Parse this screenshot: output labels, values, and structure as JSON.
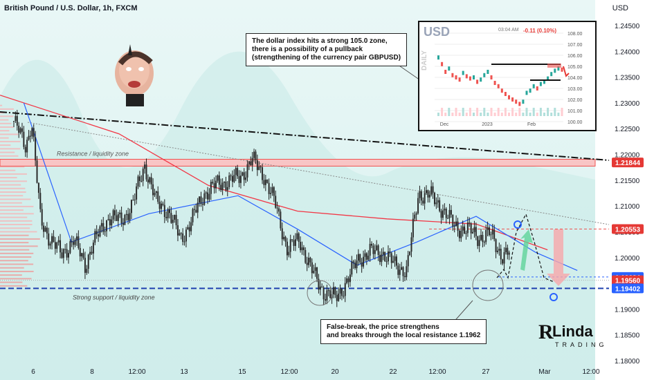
{
  "header": {
    "title": "British Pound / U.S. Dollar, 1h, FXCM",
    "currency": "USD"
  },
  "annotations": {
    "resistance_zone": "Resistance / liquidity zone",
    "support_zone": "Strong support / liquidity zone",
    "dollar_note": [
      "The dollar index hits a strong 105.0 zone,",
      "there is a possibility of a pullback",
      "(strengthening of the currency pair GBPUSD)"
    ],
    "breakout_note": [
      "False-break, the price strengthens",
      "and breaks through the local resistance 1.1962"
    ]
  },
  "price_tags": [
    {
      "value": "1.21844",
      "color": "#e53935"
    },
    {
      "value": "1.20553",
      "color": "#e53935"
    },
    {
      "value": "1.19624",
      "color": "#2962ff"
    },
    {
      "value": "1.19560",
      "color": "#e53935"
    },
    {
      "value": "1.19402",
      "color": "#2962ff"
    }
  ],
  "inset": {
    "symbol": "USD",
    "time": "03:04 AM",
    "change": "-0.11 (0.10%)",
    "period": "DAILY",
    "y_ticks": [
      "108.00",
      "107.00",
      "106.00",
      "105.00",
      "104.00",
      "103.00",
      "102.00",
      "101.00",
      "100.00"
    ],
    "x_ticks": [
      "Dec",
      "2023",
      "Feb"
    ]
  },
  "logo": {
    "main": "Linda",
    "sub": "TRADING"
  },
  "colors": {
    "bull": "#089981",
    "bear": "#f23645",
    "support": "#1e40af",
    "resistance": "#ef5350",
    "ma_red": "#f23645",
    "ma_blue": "#2962ff"
  },
  "chart_data": {
    "type": "candlestick",
    "title": "British Pound / U.S. Dollar, 1h, FXCM",
    "ylim": [
      1.18,
      1.245
    ],
    "y_ticks": [
      1.245,
      1.24,
      1.235,
      1.23,
      1.225,
      1.22,
      1.215,
      1.21,
      1.205,
      1.2,
      1.195,
      1.19,
      1.185,
      1.18
    ],
    "y_tick_labels": [
      "1.24500",
      "1.24000",
      "1.23500",
      "1.23000",
      "1.22500",
      "1.22000",
      "1.21500",
      "1.21000",
      "1.20500",
      "1.20000",
      "1.19500",
      "1.19000",
      "1.18500",
      "1.18000"
    ],
    "x_tick_labels": [
      "6",
      "8",
      "12:00",
      "13",
      "15",
      "12:00",
      "20",
      "22",
      "12:00",
      "27",
      "Mar",
      "12:00"
    ],
    "close_path": [
      [
        0,
        1.2265
      ],
      [
        0.02,
        1.2215
      ],
      [
        0.03,
        1.2265
      ],
      [
        0.045,
        1.207
      ],
      [
        0.06,
        1.204
      ],
      [
        0.08,
        1.2005
      ],
      [
        0.1,
        1.2035
      ],
      [
        0.12,
        1.1985
      ],
      [
        0.13,
        1.202
      ],
      [
        0.16,
        1.208
      ],
      [
        0.18,
        1.207
      ],
      [
        0.2,
        1.2105
      ],
      [
        0.22,
        1.218
      ],
      [
        0.24,
        1.2105
      ],
      [
        0.26,
        1.209
      ],
      [
        0.28,
        1.2035
      ],
      [
        0.3,
        1.2075
      ],
      [
        0.32,
        1.2125
      ],
      [
        0.34,
        1.214
      ],
      [
        0.36,
        1.215
      ],
      [
        0.38,
        1.2155
      ],
      [
        0.4,
        1.219
      ],
      [
        0.42,
        1.216
      ],
      [
        0.44,
        1.21
      ],
      [
        0.46,
        1.2015
      ],
      [
        0.48,
        1.2035
      ],
      [
        0.5,
        1.1975
      ],
      [
        0.52,
        1.1935
      ],
      [
        0.54,
        1.192
      ],
      [
        0.56,
        1.1955
      ],
      [
        0.58,
        1.2
      ],
      [
        0.6,
        1.201
      ],
      [
        0.62,
        1.201
      ],
      [
        0.64,
        1.1985
      ],
      [
        0.66,
        1.1975
      ],
      [
        0.68,
        1.2125
      ],
      [
        0.7,
        1.212
      ],
      [
        0.72,
        1.2095
      ],
      [
        0.74,
        1.206
      ],
      [
        0.76,
        1.2055
      ],
      [
        0.78,
        1.204
      ],
      [
        0.8,
        1.2045
      ],
      [
        0.82,
        1.2005
      ],
      [
        0.84,
        1.201
      ],
      [
        0.86,
        1.196
      ],
      [
        0.88,
        1.1955
      ],
      [
        0.9,
        1.1945
      ],
      [
        0.92,
        1.1935
      ]
    ],
    "ma_red": [
      [
        0,
        1.2315
      ],
      [
        0.2,
        1.224
      ],
      [
        0.35,
        1.214
      ],
      [
        0.5,
        1.209
      ],
      [
        0.65,
        1.2075
      ],
      [
        0.8,
        1.2065
      ],
      [
        0.92,
        1.2015
      ]
    ],
    "ma_blue": [
      [
        0.04,
        1.23
      ],
      [
        0.12,
        1.203
      ],
      [
        0.25,
        1.2085
      ],
      [
        0.4,
        1.212
      ],
      [
        0.5,
        1.2055
      ],
      [
        0.6,
        1.1985
      ],
      [
        0.7,
        1.203
      ],
      [
        0.8,
        1.208
      ],
      [
        0.9,
        1.201
      ],
      [
        0.97,
        1.1975
      ]
    ],
    "levels": {
      "resistance_zone": [
        1.218,
        1.2188
      ],
      "level_12055": 1.20553,
      "support": 1.19402,
      "local_resistance": 1.19624,
      "pivot": 1.1956
    }
  }
}
